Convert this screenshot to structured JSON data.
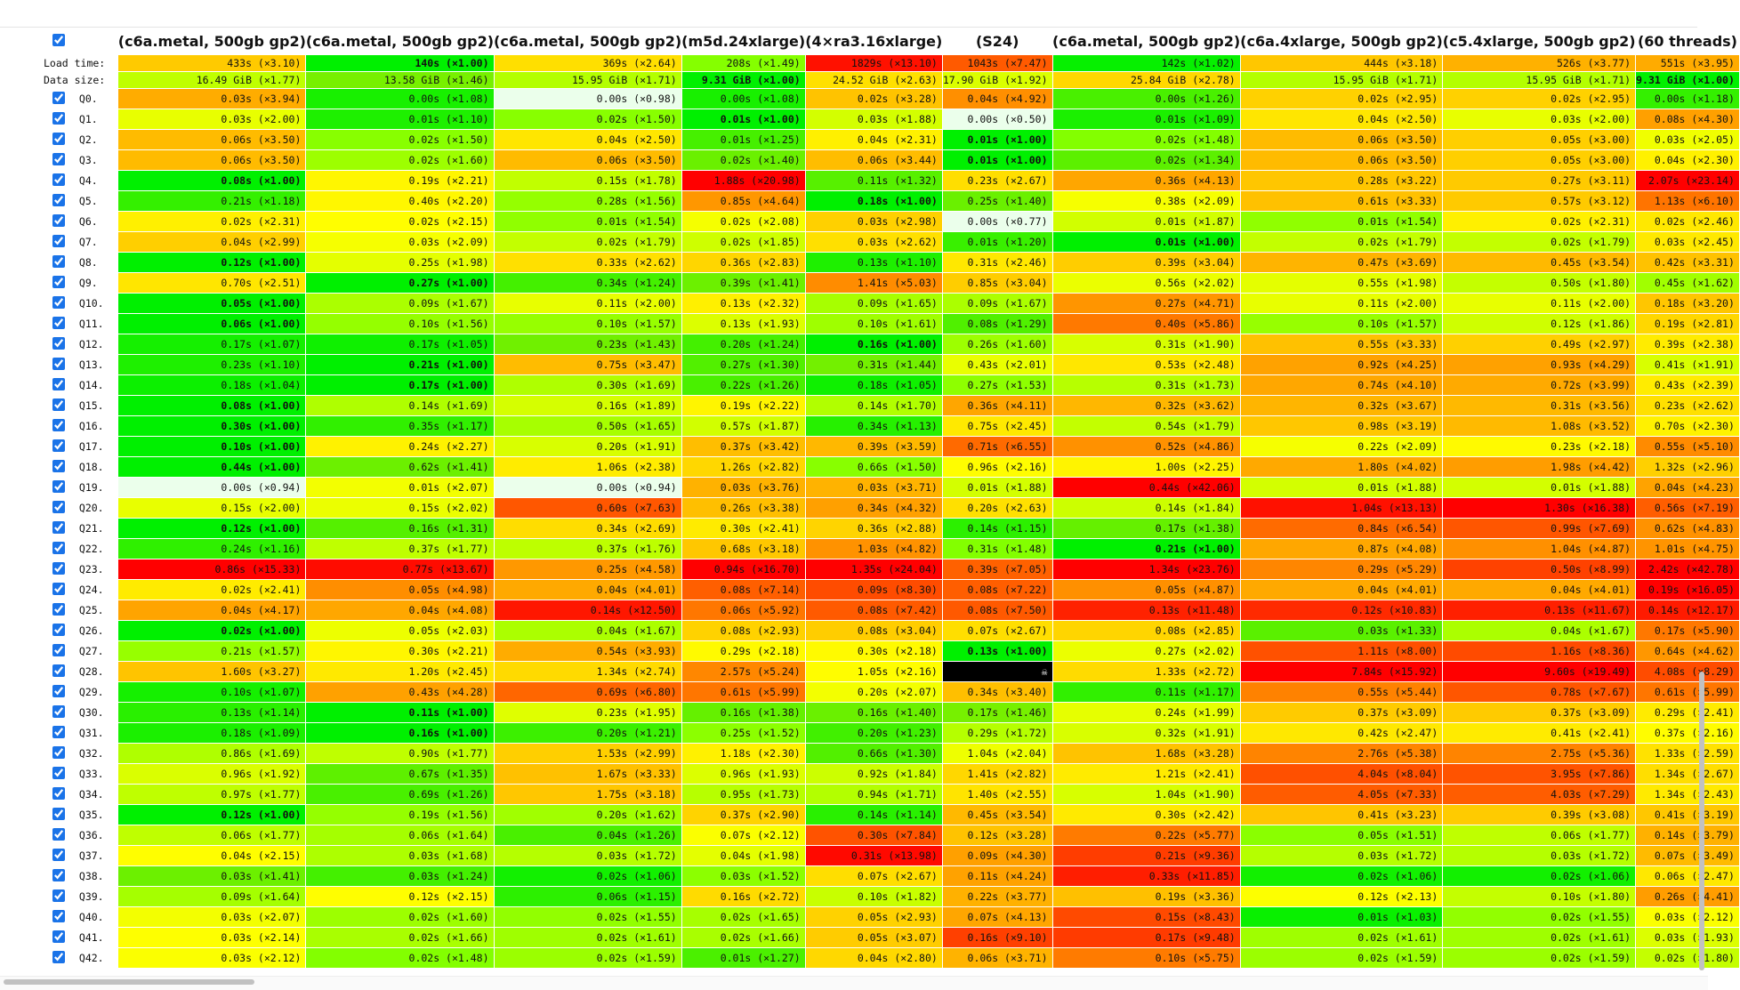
{
  "table": {
    "columns": [
      "(c6a.metal, 500gb gp2)",
      "(c6a.metal, 500gb gp2)",
      "(c6a.metal, 500gb gp2)",
      "(m5d.24xlarge)",
      "(4×ra3.16xlarge)",
      "(S24)",
      "(c6a.metal, 500gb gp2)",
      "(c6a.4xlarge, 500gb gp2)",
      "(c5.4xlarge, 500gb gp2)",
      "(60 threads)"
    ],
    "summary": [
      {
        "label": "Load time:",
        "cells": [
          "433s (×3.10)",
          "140s (×1.00)",
          "369s (×2.64)",
          "208s (×1.49)",
          "1829s (×13.10)",
          "1043s (×7.47)",
          "142s (×1.02)",
          "444s (×3.18)",
          "526s (×3.77)",
          "551s (×3.95)"
        ]
      },
      {
        "label": "Data size:",
        "cells": [
          "16.49 GiB (×1.77)",
          "13.58 GiB (×1.46)",
          "15.95 GiB (×1.71)",
          "9.31 GiB (×1.00)",
          "24.52 GiB (×2.63)",
          "17.90 GiB (×1.92)",
          "25.84 GiB (×2.78)",
          "15.95 GiB (×1.71)",
          "15.95 GiB (×1.71)",
          "9.31 GiB (×1.00)"
        ]
      }
    ],
    "queries": [
      {
        "label": "Q0.",
        "cells": [
          "0.03s (×3.94)",
          "0.00s (×1.08)",
          "0.00s (×0.98)",
          "0.00s (×1.08)",
          "0.02s (×3.28)",
          "0.04s (×4.92)",
          "0.00s (×1.26)",
          "0.02s (×2.95)",
          "0.02s (×2.95)",
          "0.00s (×1.18)"
        ]
      },
      {
        "label": "Q1.",
        "cells": [
          "0.03s (×2.00)",
          "0.01s (×1.10)",
          "0.02s (×1.50)",
          "0.01s (×1.00)",
          "0.03s (×1.88)",
          "0.00s (×0.50)",
          "0.01s (×1.09)",
          "0.04s (×2.50)",
          "0.03s (×2.00)",
          "0.08s (×4.30)"
        ]
      },
      {
        "label": "Q2.",
        "cells": [
          "0.06s (×3.50)",
          "0.02s (×1.50)",
          "0.04s (×2.50)",
          "0.01s (×1.25)",
          "0.04s (×2.31)",
          "0.01s (×1.00)",
          "0.02s (×1.48)",
          "0.06s (×3.50)",
          "0.05s (×3.00)",
          "0.03s (×2.05)"
        ]
      },
      {
        "label": "Q3.",
        "cells": [
          "0.06s (×3.50)",
          "0.02s (×1.60)",
          "0.06s (×3.50)",
          "0.02s (×1.40)",
          "0.06s (×3.44)",
          "0.01s (×1.00)",
          "0.02s (×1.34)",
          "0.06s (×3.50)",
          "0.05s (×3.00)",
          "0.04s (×2.30)"
        ]
      },
      {
        "label": "Q4.",
        "cells": [
          "0.08s (×1.00)",
          "0.19s (×2.21)",
          "0.15s (×1.78)",
          "1.88s (×20.98)",
          "0.11s (×1.32)",
          "0.23s (×2.67)",
          "0.36s (×4.13)",
          "0.28s (×3.22)",
          "0.27s (×3.11)",
          "2.07s (×23.14)"
        ]
      },
      {
        "label": "Q5.",
        "cells": [
          "0.21s (×1.18)",
          "0.40s (×2.20)",
          "0.28s (×1.56)",
          "0.85s (×4.64)",
          "0.18s (×1.00)",
          "0.25s (×1.40)",
          "0.38s (×2.09)",
          "0.61s (×3.33)",
          "0.57s (×3.12)",
          "1.13s (×6.10)"
        ]
      },
      {
        "label": "Q6.",
        "cells": [
          "0.02s (×2.31)",
          "0.02s (×2.15)",
          "0.01s (×1.54)",
          "0.02s (×2.08)",
          "0.03s (×2.98)",
          "0.00s (×0.77)",
          "0.01s (×1.87)",
          "0.01s (×1.54)",
          "0.02s (×2.31)",
          "0.02s (×2.46)"
        ]
      },
      {
        "label": "Q7.",
        "cells": [
          "0.04s (×2.99)",
          "0.03s (×2.09)",
          "0.02s (×1.79)",
          "0.02s (×1.85)",
          "0.03s (×2.62)",
          "0.01s (×1.20)",
          "0.01s (×1.00)",
          "0.02s (×1.79)",
          "0.02s (×1.79)",
          "0.03s (×2.45)"
        ]
      },
      {
        "label": "Q8.",
        "cells": [
          "0.12s (×1.00)",
          "0.25s (×1.98)",
          "0.33s (×2.62)",
          "0.36s (×2.83)",
          "0.13s (×1.10)",
          "0.31s (×2.46)",
          "0.39s (×3.04)",
          "0.47s (×3.69)",
          "0.45s (×3.54)",
          "0.42s (×3.31)"
        ]
      },
      {
        "label": "Q9.",
        "cells": [
          "0.70s (×2.51)",
          "0.27s (×1.00)",
          "0.34s (×1.24)",
          "0.39s (×1.41)",
          "1.41s (×5.03)",
          "0.85s (×3.04)",
          "0.56s (×2.02)",
          "0.55s (×1.98)",
          "0.50s (×1.80)",
          "0.45s (×1.62)"
        ]
      },
      {
        "label": "Q10.",
        "cells": [
          "0.05s (×1.00)",
          "0.09s (×1.67)",
          "0.11s (×2.00)",
          "0.13s (×2.32)",
          "0.09s (×1.65)",
          "0.09s (×1.67)",
          "0.27s (×4.71)",
          "0.11s (×2.00)",
          "0.11s (×2.00)",
          "0.18s (×3.20)"
        ]
      },
      {
        "label": "Q11.",
        "cells": [
          "0.06s (×1.00)",
          "0.10s (×1.56)",
          "0.10s (×1.57)",
          "0.13s (×1.93)",
          "0.10s (×1.61)",
          "0.08s (×1.29)",
          "0.40s (×5.86)",
          "0.10s (×1.57)",
          "0.12s (×1.86)",
          "0.19s (×2.81)"
        ]
      },
      {
        "label": "Q12.",
        "cells": [
          "0.17s (×1.07)",
          "0.17s (×1.05)",
          "0.23s (×1.43)",
          "0.20s (×1.24)",
          "0.16s (×1.00)",
          "0.26s (×1.60)",
          "0.31s (×1.90)",
          "0.55s (×3.33)",
          "0.49s (×2.97)",
          "0.39s (×2.38)"
        ]
      },
      {
        "label": "Q13.",
        "cells": [
          "0.23s (×1.10)",
          "0.21s (×1.00)",
          "0.75s (×3.47)",
          "0.27s (×1.30)",
          "0.31s (×1.44)",
          "0.43s (×2.01)",
          "0.53s (×2.48)",
          "0.92s (×4.25)",
          "0.93s (×4.29)",
          "0.41s (×1.91)"
        ]
      },
      {
        "label": "Q14.",
        "cells": [
          "0.18s (×1.04)",
          "0.17s (×1.00)",
          "0.30s (×1.69)",
          "0.22s (×1.26)",
          "0.18s (×1.05)",
          "0.27s (×1.53)",
          "0.31s (×1.73)",
          "0.74s (×4.10)",
          "0.72s (×3.99)",
          "0.43s (×2.39)"
        ]
      },
      {
        "label": "Q15.",
        "cells": [
          "0.08s (×1.00)",
          "0.14s (×1.69)",
          "0.16s (×1.89)",
          "0.19s (×2.22)",
          "0.14s (×1.70)",
          "0.36s (×4.11)",
          "0.32s (×3.62)",
          "0.32s (×3.67)",
          "0.31s (×3.56)",
          "0.23s (×2.62)"
        ]
      },
      {
        "label": "Q16.",
        "cells": [
          "0.30s (×1.00)",
          "0.35s (×1.17)",
          "0.50s (×1.65)",
          "0.57s (×1.87)",
          "0.34s (×1.13)",
          "0.75s (×2.45)",
          "0.54s (×1.79)",
          "0.98s (×3.19)",
          "1.08s (×3.52)",
          "0.70s (×2.30)"
        ]
      },
      {
        "label": "Q17.",
        "cells": [
          "0.10s (×1.00)",
          "0.24s (×2.27)",
          "0.20s (×1.91)",
          "0.37s (×3.42)",
          "0.39s (×3.59)",
          "0.71s (×6.55)",
          "0.52s (×4.86)",
          "0.22s (×2.09)",
          "0.23s (×2.18)",
          "0.55s (×5.10)"
        ]
      },
      {
        "label": "Q18.",
        "cells": [
          "0.44s (×1.00)",
          "0.62s (×1.41)",
          "1.06s (×2.38)",
          "1.26s (×2.82)",
          "0.66s (×1.50)",
          "0.96s (×2.16)",
          "1.00s (×2.25)",
          "1.80s (×4.02)",
          "1.98s (×4.42)",
          "1.32s (×2.96)"
        ]
      },
      {
        "label": "Q19.",
        "cells": [
          "0.00s (×0.94)",
          "0.01s (×2.07)",
          "0.00s (×0.94)",
          "0.03s (×3.76)",
          "0.03s (×3.71)",
          "0.01s (×1.88)",
          "0.44s (×42.06)",
          "0.01s (×1.88)",
          "0.01s (×1.88)",
          "0.04s (×4.23)"
        ]
      },
      {
        "label": "Q20.",
        "cells": [
          "0.15s (×2.00)",
          "0.15s (×2.02)",
          "0.60s (×7.63)",
          "0.26s (×3.38)",
          "0.34s (×4.32)",
          "0.20s (×2.63)",
          "0.14s (×1.84)",
          "1.04s (×13.13)",
          "1.30s (×16.38)",
          "0.56s (×7.19)"
        ]
      },
      {
        "label": "Q21.",
        "cells": [
          "0.12s (×1.00)",
          "0.16s (×1.31)",
          "0.34s (×2.69)",
          "0.30s (×2.41)",
          "0.36s (×2.88)",
          "0.14s (×1.15)",
          "0.17s (×1.38)",
          "0.84s (×6.54)",
          "0.99s (×7.69)",
          "0.62s (×4.83)"
        ]
      },
      {
        "label": "Q22.",
        "cells": [
          "0.24s (×1.16)",
          "0.37s (×1.77)",
          "0.37s (×1.76)",
          "0.68s (×3.18)",
          "1.03s (×4.82)",
          "0.31s (×1.48)",
          "0.21s (×1.00)",
          "0.87s (×4.08)",
          "1.04s (×4.87)",
          "1.01s (×4.75)"
        ]
      },
      {
        "label": "Q23.",
        "cells": [
          "0.86s (×15.33)",
          "0.77s (×13.67)",
          "0.25s (×4.58)",
          "0.94s (×16.70)",
          "1.35s (×24.04)",
          "0.39s (×7.05)",
          "1.34s (×23.76)",
          "0.29s (×5.29)",
          "0.50s (×8.99)",
          "2.42s (×42.78)"
        ]
      },
      {
        "label": "Q24.",
        "cells": [
          "0.02s (×2.41)",
          "0.05s (×4.98)",
          "0.04s (×4.01)",
          "0.08s (×7.14)",
          "0.09s (×8.30)",
          "0.08s (×7.22)",
          "0.05s (×4.87)",
          "0.04s (×4.01)",
          "0.04s (×4.01)",
          "0.19s (×16.05)"
        ]
      },
      {
        "label": "Q25.",
        "cells": [
          "0.04s (×4.17)",
          "0.04s (×4.08)",
          "0.14s (×12.50)",
          "0.06s (×5.92)",
          "0.08s (×7.42)",
          "0.08s (×7.50)",
          "0.13s (×11.48)",
          "0.12s (×10.83)",
          "0.13s (×11.67)",
          "0.14s (×12.17)"
        ]
      },
      {
        "label": "Q26.",
        "cells": [
          "0.02s (×1.00)",
          "0.05s (×2.03)",
          "0.04s (×1.67)",
          "0.08s (×2.93)",
          "0.08s (×3.04)",
          "0.07s (×2.67)",
          "0.08s (×2.85)",
          "0.03s (×1.33)",
          "0.04s (×1.67)",
          "0.17s (×5.90)"
        ]
      },
      {
        "label": "Q27.",
        "cells": [
          "0.21s (×1.57)",
          "0.30s (×2.21)",
          "0.54s (×3.93)",
          "0.29s (×2.18)",
          "0.30s (×2.18)",
          "0.13s (×1.00)",
          "0.27s (×2.02)",
          "1.11s (×8.00)",
          "1.16s (×8.36)",
          "0.64s (×4.62)"
        ]
      },
      {
        "label": "Q28.",
        "cells": [
          "1.60s (×3.27)",
          "1.20s (×2.45)",
          "1.34s (×2.74)",
          "2.57s (×5.24)",
          "1.05s (×2.16)",
          "☠",
          "1.33s (×2.72)",
          "7.84s (×15.92)",
          "9.60s (×19.49)",
          "4.08s (×8.29)"
        ]
      },
      {
        "label": "Q29.",
        "cells": [
          "0.10s (×1.07)",
          "0.43s (×4.28)",
          "0.69s (×6.80)",
          "0.61s (×5.99)",
          "0.20s (×2.07)",
          "0.34s (×3.40)",
          "0.11s (×1.17)",
          "0.55s (×5.44)",
          "0.78s (×7.67)",
          "0.61s (×5.99)"
        ]
      },
      {
        "label": "Q30.",
        "cells": [
          "0.13s (×1.14)",
          "0.11s (×1.00)",
          "0.23s (×1.95)",
          "0.16s (×1.38)",
          "0.16s (×1.40)",
          "0.17s (×1.46)",
          "0.24s (×1.99)",
          "0.37s (×3.09)",
          "0.37s (×3.09)",
          "0.29s (×2.41)"
        ]
      },
      {
        "label": "Q31.",
        "cells": [
          "0.18s (×1.09)",
          "0.16s (×1.00)",
          "0.20s (×1.21)",
          "0.25s (×1.52)",
          "0.20s (×1.23)",
          "0.29s (×1.72)",
          "0.32s (×1.91)",
          "0.42s (×2.47)",
          "0.41s (×2.41)",
          "0.37s (×2.16)"
        ]
      },
      {
        "label": "Q32.",
        "cells": [
          "0.86s (×1.69)",
          "0.90s (×1.77)",
          "1.53s (×2.99)",
          "1.18s (×2.30)",
          "0.66s (×1.30)",
          "1.04s (×2.04)",
          "1.68s (×3.28)",
          "2.76s (×5.38)",
          "2.75s (×5.36)",
          "1.33s (×2.59)"
        ]
      },
      {
        "label": "Q33.",
        "cells": [
          "0.96s (×1.92)",
          "0.67s (×1.35)",
          "1.67s (×3.33)",
          "0.96s (×1.93)",
          "0.92s (×1.84)",
          "1.41s (×2.82)",
          "1.21s (×2.41)",
          "4.04s (×8.04)",
          "3.95s (×7.86)",
          "1.34s (×2.67)"
        ]
      },
      {
        "label": "Q34.",
        "cells": [
          "0.97s (×1.77)",
          "0.69s (×1.26)",
          "1.75s (×3.18)",
          "0.95s (×1.73)",
          "0.94s (×1.71)",
          "1.40s (×2.55)",
          "1.04s (×1.90)",
          "4.05s (×7.33)",
          "4.03s (×7.29)",
          "1.34s (×2.43)"
        ]
      },
      {
        "label": "Q35.",
        "cells": [
          "0.12s (×1.00)",
          "0.19s (×1.56)",
          "0.20s (×1.62)",
          "0.37s (×2.90)",
          "0.14s (×1.14)",
          "0.45s (×3.54)",
          "0.30s (×2.42)",
          "0.41s (×3.23)",
          "0.39s (×3.08)",
          "0.41s (×3.19)"
        ]
      },
      {
        "label": "Q36.",
        "cells": [
          "0.06s (×1.77)",
          "0.06s (×1.64)",
          "0.04s (×1.26)",
          "0.07s (×2.12)",
          "0.30s (×7.84)",
          "0.12s (×3.28)",
          "0.22s (×5.77)",
          "0.05s (×1.51)",
          "0.06s (×1.77)",
          "0.14s (×3.79)"
        ]
      },
      {
        "label": "Q37.",
        "cells": [
          "0.04s (×2.15)",
          "0.03s (×1.68)",
          "0.03s (×1.72)",
          "0.04s (×1.98)",
          "0.31s (×13.98)",
          "0.09s (×4.30)",
          "0.21s (×9.36)",
          "0.03s (×1.72)",
          "0.03s (×1.72)",
          "0.07s (×3.49)"
        ]
      },
      {
        "label": "Q38.",
        "cells": [
          "0.03s (×1.41)",
          "0.03s (×1.24)",
          "0.02s (×1.06)",
          "0.03s (×1.52)",
          "0.07s (×2.67)",
          "0.11s (×4.24)",
          "0.33s (×11.85)",
          "0.02s (×1.06)",
          "0.02s (×1.06)",
          "0.06s (×2.47)"
        ]
      },
      {
        "label": "Q39.",
        "cells": [
          "0.09s (×1.64)",
          "0.12s (×2.15)",
          "0.06s (×1.15)",
          "0.16s (×2.72)",
          "0.10s (×1.82)",
          "0.22s (×3.77)",
          "0.19s (×3.36)",
          "0.12s (×2.13)",
          "0.10s (×1.80)",
          "0.26s (×4.41)"
        ]
      },
      {
        "label": "Q40.",
        "cells": [
          "0.03s (×2.07)",
          "0.02s (×1.60)",
          "0.02s (×1.55)",
          "0.02s (×1.65)",
          "0.05s (×2.93)",
          "0.07s (×4.13)",
          "0.15s (×8.43)",
          "0.01s (×1.03)",
          "0.02s (×1.55)",
          "0.03s (×2.12)"
        ]
      },
      {
        "label": "Q41.",
        "cells": [
          "0.03s (×2.14)",
          "0.02s (×1.66)",
          "0.02s (×1.61)",
          "0.02s (×1.66)",
          "0.05s (×3.07)",
          "0.16s (×9.10)",
          "0.17s (×9.48)",
          "0.02s (×1.61)",
          "0.02s (×1.61)",
          "0.03s (×1.93)"
        ]
      },
      {
        "label": "Q42.",
        "cells": [
          "0.03s (×2.12)",
          "0.02s (×1.48)",
          "0.02s (×1.59)",
          "0.01s (×1.27)",
          "0.04s (×2.80)",
          "0.06s (×3.71)",
          "0.10s (×5.75)",
          "0.02s (×1.59)",
          "0.02s (×1.59)",
          "0.02s (×1.80)"
        ]
      }
    ]
  }
}
